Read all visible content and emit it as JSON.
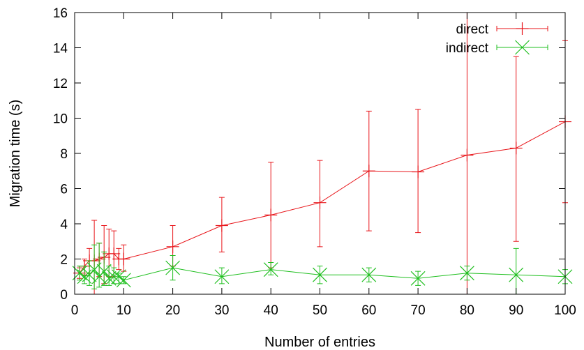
{
  "chart_data": {
    "type": "line",
    "xlabel": "Number of entries",
    "ylabel": "Migration time (s)",
    "xlim": [
      0,
      100
    ],
    "ylim": [
      0,
      16
    ],
    "x_ticks": [
      "0",
      "10",
      "20",
      "30",
      "40",
      "50",
      "60",
      "70",
      "80",
      "90",
      "100"
    ],
    "y_ticks": [
      "0",
      "2",
      "4",
      "6",
      "8",
      "10",
      "12",
      "14",
      "16"
    ],
    "grid": false,
    "legend_position": "top-right",
    "series": [
      {
        "name": "direct",
        "color": "#e8151a",
        "marker": "plus",
        "points": [
          {
            "x": 1,
            "y": 1.2,
            "low": 0.9,
            "high": 1.5
          },
          {
            "x": 2,
            "y": 1.6,
            "low": 1.1,
            "high": 2.0
          },
          {
            "x": 3,
            "y": 1.9,
            "low": 1.2,
            "high": 2.6
          },
          {
            "x": 4,
            "y": 1.9,
            "low": 0.0,
            "high": 4.2
          },
          {
            "x": 5,
            "y": 2.0,
            "low": 1.0,
            "high": 2.9
          },
          {
            "x": 6,
            "y": 2.1,
            "low": 0.6,
            "high": 3.9
          },
          {
            "x": 7,
            "y": 2.3,
            "low": 1.0,
            "high": 3.7
          },
          {
            "x": 8,
            "y": 2.3,
            "low": 1.0,
            "high": 3.6
          },
          {
            "x": 9,
            "y": 2.0,
            "low": 1.4,
            "high": 2.6
          },
          {
            "x": 10,
            "y": 2.0,
            "low": 1.3,
            "high": 2.8
          },
          {
            "x": 20,
            "y": 2.7,
            "low": 1.6,
            "high": 3.9
          },
          {
            "x": 30,
            "y": 3.9,
            "low": 2.4,
            "high": 5.5
          },
          {
            "x": 40,
            "y": 4.5,
            "low": 1.5,
            "high": 7.5
          },
          {
            "x": 50,
            "y": 5.2,
            "low": 2.7,
            "high": 7.6
          },
          {
            "x": 60,
            "y": 7.0,
            "low": 3.6,
            "high": 10.4
          },
          {
            "x": 70,
            "y": 6.95,
            "low": 3.5,
            "high": 10.5
          },
          {
            "x": 80,
            "y": 7.9,
            "low": 0.0,
            "high": 16.0
          },
          {
            "x": 90,
            "y": 8.3,
            "low": 3.0,
            "high": 13.5
          },
          {
            "x": 100,
            "y": 9.8,
            "low": 5.2,
            "high": 14.4
          }
        ]
      },
      {
        "name": "indirect",
        "color": "#1fbf1f",
        "marker": "cross",
        "points": [
          {
            "x": 1,
            "y": 1.2,
            "low": 0.8,
            "high": 1.6
          },
          {
            "x": 2,
            "y": 1.0,
            "low": 0.6,
            "high": 1.6
          },
          {
            "x": 3,
            "y": 1.1,
            "low": 0.5,
            "high": 1.9
          },
          {
            "x": 4,
            "y": 1.4,
            "low": 0.3,
            "high": 2.8
          },
          {
            "x": 5,
            "y": 1.0,
            "low": 0.4,
            "high": 2.9
          },
          {
            "x": 6,
            "y": 1.3,
            "low": 0.5,
            "high": 2.4
          },
          {
            "x": 7,
            "y": 0.9,
            "low": 0.5,
            "high": 1.6
          },
          {
            "x": 8,
            "y": 1.0,
            "low": 0.6,
            "high": 1.5
          },
          {
            "x": 9,
            "y": 1.0,
            "low": 0.6,
            "high": 1.2
          },
          {
            "x": 10,
            "y": 0.8,
            "low": 0.6,
            "high": 1.0
          },
          {
            "x": 20,
            "y": 1.5,
            "low": 0.8,
            "high": 2.2
          },
          {
            "x": 30,
            "y": 1.0,
            "low": 0.6,
            "high": 1.5
          },
          {
            "x": 40,
            "y": 1.4,
            "low": 1.1,
            "high": 1.8
          },
          {
            "x": 50,
            "y": 1.1,
            "low": 0.6,
            "high": 1.6
          },
          {
            "x": 60,
            "y": 1.1,
            "low": 0.7,
            "high": 1.5
          },
          {
            "x": 70,
            "y": 0.9,
            "low": 0.5,
            "high": 1.3
          },
          {
            "x": 80,
            "y": 1.2,
            "low": 0.8,
            "high": 1.6
          },
          {
            "x": 90,
            "y": 1.1,
            "low": 0.0,
            "high": 2.6
          },
          {
            "x": 100,
            "y": 1.0,
            "low": 0.6,
            "high": 1.4
          }
        ]
      }
    ]
  }
}
